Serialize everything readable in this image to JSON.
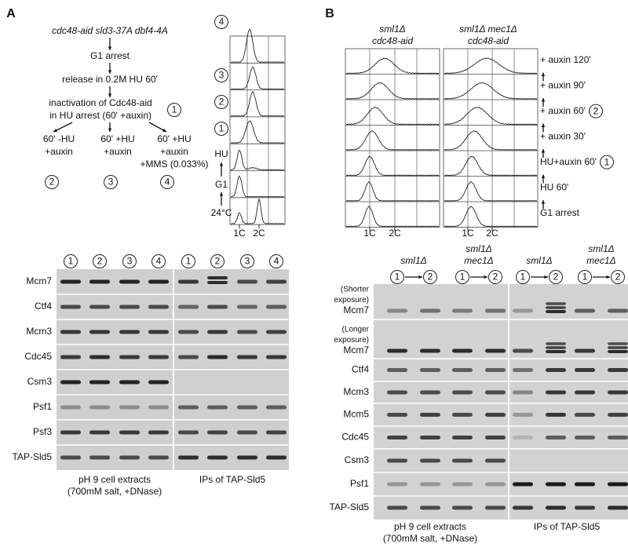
{
  "panel_a": {
    "label": "A",
    "scheme": {
      "strain": "cdc48-aid sld3-37A dbf4-4A",
      "steps": [
        "G1 arrest",
        "release in 0.2M HU 60'"
      ],
      "inactivation": [
        "inactivation of Cdc48-aid",
        "in HU arrest (60' +auxin)"
      ],
      "inactivation_marker": "1",
      "branches": [
        {
          "lines": [
            "60' -HU",
            "+auxin"
          ],
          "marker": "2"
        },
        {
          "lines": [
            "60' +HU",
            "+auxin"
          ],
          "marker": "3"
        },
        {
          "lines": [
            "60' +HU",
            "+auxin",
            "+MMS (0.033%)"
          ],
          "marker": "4"
        }
      ]
    },
    "flow": {
      "markers": [
        "4",
        "3",
        "2",
        "1"
      ],
      "stages": [
        "HU",
        "G1",
        "24°C"
      ],
      "x_labels": [
        "1C",
        "2C"
      ]
    },
    "blot": {
      "lanes": [
        "1",
        "2",
        "3",
        "4",
        "1",
        "2",
        "3",
        "4"
      ],
      "rows": [
        "Mcm7",
        "Ctf4",
        "Mcm3",
        "Cdc45",
        "Csm3",
        "Psf1",
        "Psf3",
        "TAP-Sld5"
      ],
      "footers": [
        [
          "pH 9 cell extracts",
          "(700mM salt, +DNase)"
        ],
        [
          "IPs of TAP-Sld5"
        ]
      ]
    }
  },
  "panel_b": {
    "label": "B",
    "strains": [
      [
        "sml1Δ",
        "cdc48-aid"
      ],
      [
        "sml1Δ mec1Δ",
        "cdc48-aid"
      ]
    ],
    "flow": {
      "timepoints": [
        {
          "label": "+ auxin 120'"
        },
        {
          "label": "+ auxin 90'"
        },
        {
          "label": "+ auxin 60'",
          "marker": "2"
        },
        {
          "label": "+ auxin 30'"
        },
        {
          "label": "HU+auxin 60'",
          "marker": "1"
        },
        {
          "label": "HU 60'"
        },
        {
          "label": "G1 arrest"
        }
      ],
      "x_labels": [
        "1C",
        "2C"
      ]
    },
    "blot": {
      "groups": [
        {
          "header": [
            "sml1Δ"
          ],
          "markers": [
            "1",
            "2"
          ]
        },
        {
          "header": [
            "sml1Δ",
            "mec1Δ"
          ],
          "markers": [
            "1",
            "2"
          ]
        },
        {
          "header": [
            "sml1Δ"
          ],
          "markers": [
            "1",
            "2"
          ]
        },
        {
          "header": [
            "sml1Δ",
            "mec1Δ"
          ],
          "markers": [
            "1",
            "2"
          ]
        }
      ],
      "rows": [
        [
          "(Shorter",
          "exposure)",
          "Mcm7"
        ],
        [
          "(Longer",
          "exposure)",
          "Mcm7"
        ],
        [
          "Ctf4"
        ],
        [
          "Mcm3"
        ],
        [
          "Mcm5"
        ],
        [
          "Cdc45"
        ],
        [
          "Csm3"
        ],
        [
          "Psf1"
        ],
        [
          "TAP-Sld5"
        ]
      ],
      "footers": [
        [
          "pH 9 cell extracts",
          "(700mM salt, +DNase)"
        ],
        [
          "IPs of TAP-Sld5"
        ]
      ]
    }
  }
}
